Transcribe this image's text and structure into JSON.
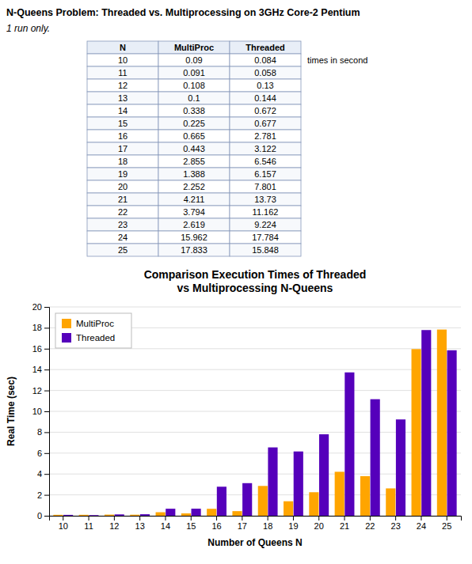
{
  "chart_data": [
    {
      "type": "table",
      "title": "N-Queens Problem: Threaded vs. Multiprocessing on 3GHz Core-2 Pentium",
      "subtitle": "1 run only.",
      "columns": [
        "N",
        "MultiProc",
        "Threaded"
      ],
      "categories": [
        10,
        11,
        12,
        13,
        14,
        15,
        16,
        17,
        18,
        19,
        20,
        21,
        22,
        23,
        24,
        25
      ],
      "series": [
        {
          "values": [
            0.09,
            0.091,
            0.108,
            0.1,
            0.338,
            0.225,
            0.665,
            0.443,
            2.855,
            1.388,
            2.252,
            4.211,
            3.794,
            2.619,
            15.962,
            17.833
          ]
        },
        {
          "values": [
            0.084,
            0.058,
            0.13,
            0.144,
            0.672,
            0.677,
            2.781,
            3.122,
            6.546,
            6.157,
            7.801,
            13.73,
            11.162,
            9.224,
            17.784,
            15.848
          ]
        }
      ],
      "annotations": [
        "times in second"
      ]
    },
    {
      "type": "bar",
      "title": "Comparison Execution Times of Threaded\nvs Multiprocessing N-Queens",
      "xlabel": "Number of Queens N",
      "ylabel": "Real Time (sec)",
      "categories": [
        "10",
        "11",
        "12",
        "13",
        "14",
        "15",
        "16",
        "17",
        "18",
        "19",
        "20",
        "21",
        "22",
        "23",
        "24",
        "25"
      ],
      "series": [
        {
          "name": "MultiProc",
          "color": "#FFA500",
          "values": [
            0.09,
            0.091,
            0.108,
            0.1,
            0.338,
            0.225,
            0.665,
            0.443,
            2.855,
            1.388,
            2.252,
            4.211,
            3.794,
            2.619,
            15.962,
            17.833
          ]
        },
        {
          "name": "Threaded",
          "color": "#5500BB",
          "values": [
            0.084,
            0.058,
            0.13,
            0.144,
            0.672,
            0.677,
            2.781,
            3.122,
            6.546,
            6.157,
            7.801,
            13.73,
            11.162,
            9.224,
            17.784,
            15.848
          ]
        }
      ],
      "ylim": [
        0,
        20
      ],
      "yticks": [
        0,
        2,
        4,
        6,
        8,
        10,
        12,
        14,
        16,
        18,
        20
      ],
      "grid": true,
      "legend": "upper left"
    }
  ]
}
